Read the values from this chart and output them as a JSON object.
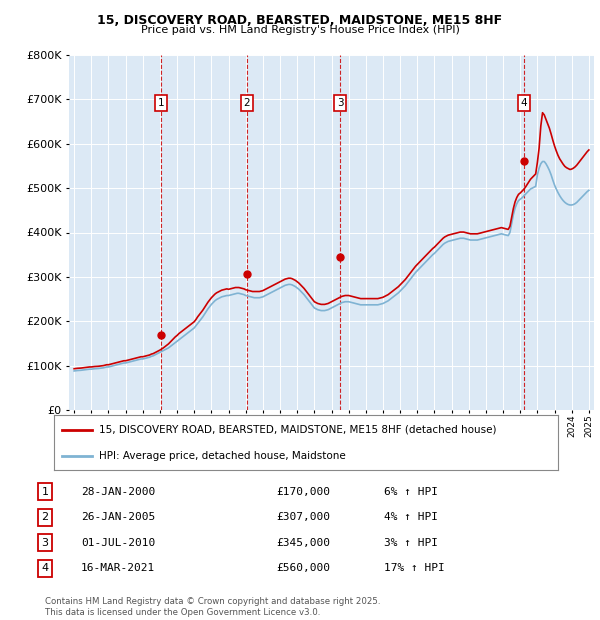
{
  "title_line1": "15, DISCOVERY ROAD, BEARSTED, MAIDSTONE, ME15 8HF",
  "title_line2": "Price paid vs. HM Land Registry's House Price Index (HPI)",
  "background_color": "#dce9f5",
  "grid_color": "#ffffff",
  "red_line_color": "#cc0000",
  "blue_line_color": "#7fb3d3",
  "ylim": [
    0,
    800000
  ],
  "yticks": [
    0,
    100000,
    200000,
    300000,
    400000,
    500000,
    600000,
    700000,
    800000
  ],
  "ytick_labels": [
    "£0",
    "£100K",
    "£200K",
    "£300K",
    "£400K",
    "£500K",
    "£600K",
    "£700K",
    "£800K"
  ],
  "xlim_start": 1994.7,
  "xlim_end": 2025.3,
  "sale_dates": [
    2000.07,
    2005.07,
    2010.5,
    2021.21
  ],
  "sale_prices": [
    170000,
    307000,
    345000,
    560000
  ],
  "sale_labels": [
    "1",
    "2",
    "3",
    "4"
  ],
  "legend_line1": "15, DISCOVERY ROAD, BEARSTED, MAIDSTONE, ME15 8HF (detached house)",
  "legend_line2": "HPI: Average price, detached house, Maidstone",
  "table_data": [
    [
      "1",
      "28-JAN-2000",
      "£170,000",
      "6% ↑ HPI"
    ],
    [
      "2",
      "26-JAN-2005",
      "£307,000",
      "4% ↑ HPI"
    ],
    [
      "3",
      "01-JUL-2010",
      "£345,000",
      "3% ↑ HPI"
    ],
    [
      "4",
      "16-MAR-2021",
      "£560,000",
      "17% ↑ HPI"
    ]
  ],
  "footer": "Contains HM Land Registry data © Crown copyright and database right 2025.\nThis data is licensed under the Open Government Licence v3.0.",
  "hpi_x": [
    1995.0,
    1995.1,
    1995.2,
    1995.3,
    1995.4,
    1995.5,
    1995.6,
    1995.7,
    1995.8,
    1995.9,
    1996.0,
    1996.1,
    1996.2,
    1996.3,
    1996.4,
    1996.5,
    1996.6,
    1996.7,
    1996.8,
    1996.9,
    1997.0,
    1997.1,
    1997.2,
    1997.3,
    1997.4,
    1997.5,
    1997.6,
    1997.7,
    1997.8,
    1997.9,
    1998.0,
    1998.1,
    1998.2,
    1998.3,
    1998.4,
    1998.5,
    1998.6,
    1998.7,
    1998.8,
    1998.9,
    1999.0,
    1999.1,
    1999.2,
    1999.3,
    1999.4,
    1999.5,
    1999.6,
    1999.7,
    1999.8,
    1999.9,
    2000.0,
    2000.1,
    2000.2,
    2000.3,
    2000.4,
    2000.5,
    2000.6,
    2000.7,
    2000.8,
    2000.9,
    2001.0,
    2001.1,
    2001.2,
    2001.3,
    2001.4,
    2001.5,
    2001.6,
    2001.7,
    2001.8,
    2001.9,
    2002.0,
    2002.1,
    2002.2,
    2002.3,
    2002.4,
    2002.5,
    2002.6,
    2002.7,
    2002.8,
    2002.9,
    2003.0,
    2003.1,
    2003.2,
    2003.3,
    2003.4,
    2003.5,
    2003.6,
    2003.7,
    2003.8,
    2003.9,
    2004.0,
    2004.1,
    2004.2,
    2004.3,
    2004.4,
    2004.5,
    2004.6,
    2004.7,
    2004.8,
    2004.9,
    2005.0,
    2005.1,
    2005.2,
    2005.3,
    2005.4,
    2005.5,
    2005.6,
    2005.7,
    2005.8,
    2005.9,
    2006.0,
    2006.1,
    2006.2,
    2006.3,
    2006.4,
    2006.5,
    2006.6,
    2006.7,
    2006.8,
    2006.9,
    2007.0,
    2007.1,
    2007.2,
    2007.3,
    2007.4,
    2007.5,
    2007.6,
    2007.7,
    2007.8,
    2007.9,
    2008.0,
    2008.1,
    2008.2,
    2008.3,
    2008.4,
    2008.5,
    2008.6,
    2008.7,
    2008.8,
    2008.9,
    2009.0,
    2009.1,
    2009.2,
    2009.3,
    2009.4,
    2009.5,
    2009.6,
    2009.7,
    2009.8,
    2009.9,
    2010.0,
    2010.1,
    2010.2,
    2010.3,
    2010.4,
    2010.5,
    2010.6,
    2010.7,
    2010.8,
    2010.9,
    2011.0,
    2011.1,
    2011.2,
    2011.3,
    2011.4,
    2011.5,
    2011.6,
    2011.7,
    2011.8,
    2011.9,
    2012.0,
    2012.1,
    2012.2,
    2012.3,
    2012.4,
    2012.5,
    2012.6,
    2012.7,
    2012.8,
    2012.9,
    2013.0,
    2013.1,
    2013.2,
    2013.3,
    2013.4,
    2013.5,
    2013.6,
    2013.7,
    2013.8,
    2013.9,
    2014.0,
    2014.1,
    2014.2,
    2014.3,
    2014.4,
    2014.5,
    2014.6,
    2014.7,
    2014.8,
    2014.9,
    2015.0,
    2015.1,
    2015.2,
    2015.3,
    2015.4,
    2015.5,
    2015.6,
    2015.7,
    2015.8,
    2015.9,
    2016.0,
    2016.1,
    2016.2,
    2016.3,
    2016.4,
    2016.5,
    2016.6,
    2016.7,
    2016.8,
    2016.9,
    2017.0,
    2017.1,
    2017.2,
    2017.3,
    2017.4,
    2017.5,
    2017.6,
    2017.7,
    2017.8,
    2017.9,
    2018.0,
    2018.1,
    2018.2,
    2018.3,
    2018.4,
    2018.5,
    2018.6,
    2018.7,
    2018.8,
    2018.9,
    2019.0,
    2019.1,
    2019.2,
    2019.3,
    2019.4,
    2019.5,
    2019.6,
    2019.7,
    2019.8,
    2019.9,
    2020.0,
    2020.1,
    2020.2,
    2020.3,
    2020.4,
    2020.5,
    2020.6,
    2020.7,
    2020.8,
    2020.9,
    2021.0,
    2021.1,
    2021.2,
    2021.3,
    2021.4,
    2021.5,
    2021.6,
    2021.7,
    2021.8,
    2021.9,
    2022.0,
    2022.1,
    2022.2,
    2022.3,
    2022.4,
    2022.5,
    2022.6,
    2022.7,
    2022.8,
    2022.9,
    2023.0,
    2023.1,
    2023.2,
    2023.3,
    2023.4,
    2023.5,
    2023.6,
    2023.7,
    2023.8,
    2023.9,
    2024.0,
    2024.1,
    2024.2,
    2024.3,
    2024.4,
    2024.5,
    2024.6,
    2024.7,
    2024.8,
    2024.9,
    2025.0
  ],
  "hpi_y": [
    88000,
    88500,
    89000,
    89200,
    89500,
    90000,
    90500,
    91000,
    91500,
    92000,
    92000,
    92500,
    93000,
    93200,
    93500,
    94000,
    94500,
    95000,
    96000,
    97000,
    97000,
    98000,
    99000,
    100000,
    101000,
    102000,
    103000,
    104000,
    105000,
    106000,
    106000,
    107000,
    108000,
    109000,
    110000,
    111000,
    112000,
    113000,
    114000,
    115000,
    115000,
    116000,
    117000,
    118000,
    119000,
    121000,
    122000,
    124000,
    126000,
    128000,
    130000,
    132000,
    134000,
    136000,
    138000,
    140000,
    143000,
    146000,
    149000,
    152000,
    155000,
    158000,
    161000,
    164000,
    167000,
    170000,
    173000,
    176000,
    179000,
    182000,
    185000,
    190000,
    195000,
    200000,
    205000,
    210000,
    216000,
    222000,
    228000,
    233000,
    238000,
    242000,
    246000,
    249000,
    251000,
    253000,
    255000,
    256000,
    257000,
    258000,
    258000,
    259000,
    260000,
    261000,
    262000,
    263000,
    263000,
    262000,
    261000,
    260000,
    258000,
    257000,
    256000,
    255000,
    254000,
    253000,
    253000,
    253000,
    253000,
    254000,
    255000,
    257000,
    259000,
    261000,
    263000,
    265000,
    267000,
    269000,
    271000,
    273000,
    275000,
    277000,
    279000,
    281000,
    282000,
    283000,
    283000,
    282000,
    280000,
    278000,
    275000,
    272000,
    268000,
    264000,
    260000,
    255000,
    250000,
    245000,
    240000,
    235000,
    230000,
    228000,
    226000,
    225000,
    224000,
    224000,
    224000,
    225000,
    226000,
    228000,
    230000,
    232000,
    234000,
    236000,
    238000,
    240000,
    242000,
    243000,
    244000,
    244000,
    244000,
    243000,
    242000,
    241000,
    240000,
    239000,
    238000,
    237000,
    237000,
    237000,
    237000,
    237000,
    237000,
    237000,
    237000,
    237000,
    237000,
    237000,
    238000,
    239000,
    240000,
    242000,
    244000,
    246000,
    249000,
    252000,
    255000,
    258000,
    261000,
    264000,
    268000,
    272000,
    276000,
    280000,
    285000,
    290000,
    295000,
    300000,
    305000,
    310000,
    314000,
    318000,
    322000,
    326000,
    330000,
    334000,
    338000,
    342000,
    346000,
    350000,
    353000,
    357000,
    361000,
    365000,
    369000,
    373000,
    376000,
    378000,
    380000,
    381000,
    382000,
    383000,
    384000,
    385000,
    386000,
    387000,
    387000,
    387000,
    386000,
    385000,
    384000,
    383000,
    383000,
    383000,
    383000,
    383000,
    384000,
    385000,
    386000,
    387000,
    388000,
    389000,
    390000,
    391000,
    392000,
    393000,
    394000,
    395000,
    396000,
    397000,
    396000,
    395000,
    394000,
    393000,
    400000,
    420000,
    440000,
    455000,
    465000,
    472000,
    475000,
    478000,
    482000,
    486000,
    490000,
    494000,
    498000,
    500000,
    502000,
    504000,
    530000,
    545000,
    555000,
    560000,
    560000,
    555000,
    548000,
    540000,
    530000,
    518000,
    507000,
    498000,
    490000,
    483000,
    477000,
    472000,
    468000,
    465000,
    463000,
    462000,
    462000,
    463000,
    465000,
    468000,
    472000,
    476000,
    480000,
    484000,
    488000,
    492000,
    495000
  ],
  "red_y": [
    93000,
    93500,
    94000,
    94200,
    94500,
    95000,
    95500,
    96000,
    96500,
    97000,
    97000,
    97500,
    98000,
    98200,
    98500,
    99000,
    99500,
    100000,
    101000,
    102000,
    102000,
    103000,
    104000,
    105000,
    106000,
    107000,
    108000,
    109000,
    110000,
    111000,
    111000,
    112000,
    113000,
    114000,
    115000,
    116000,
    117000,
    118000,
    119000,
    120000,
    120000,
    121000,
    122000,
    123000,
    124000,
    126000,
    127000,
    129000,
    131000,
    133000,
    135000,
    137500,
    140000,
    143000,
    146000,
    149000,
    153000,
    157000,
    161000,
    165000,
    168000,
    172000,
    175000,
    178000,
    181000,
    184000,
    187000,
    190000,
    193000,
    196000,
    199000,
    204000,
    210000,
    215000,
    220000,
    225000,
    231000,
    237000,
    243000,
    248000,
    253000,
    257000,
    261000,
    264000,
    266000,
    268000,
    270000,
    271000,
    272000,
    273000,
    272000,
    273000,
    274000,
    275000,
    276000,
    276000,
    276000,
    275000,
    274000,
    273000,
    271000,
    270000,
    269000,
    268000,
    267000,
    267000,
    267000,
    267000,
    267000,
    268000,
    269000,
    271000,
    273000,
    275000,
    277000,
    279000,
    281000,
    283000,
    285000,
    287000,
    289000,
    291000,
    293000,
    295000,
    296000,
    297000,
    297000,
    296000,
    294000,
    292000,
    289000,
    286000,
    282000,
    278000,
    274000,
    269000,
    264000,
    259000,
    254000,
    249000,
    244000,
    242000,
    240000,
    239000,
    238000,
    238000,
    238000,
    239000,
    240000,
    242000,
    244000,
    246000,
    248000,
    250000,
    252000,
    254000,
    256000,
    257000,
    258000,
    258000,
    258000,
    257000,
    256000,
    255000,
    254000,
    253000,
    252000,
    251000,
    251000,
    251000,
    251000,
    251000,
    251000,
    251000,
    251000,
    251000,
    251000,
    251000,
    252000,
    253000,
    254000,
    256000,
    258000,
    260000,
    263000,
    266000,
    269000,
    272000,
    275000,
    278000,
    282000,
    286000,
    290000,
    294000,
    299000,
    304000,
    309000,
    314000,
    319000,
    324000,
    328000,
    332000,
    336000,
    340000,
    344000,
    348000,
    352000,
    356000,
    360000,
    364000,
    367000,
    371000,
    375000,
    379000,
    383000,
    387000,
    390000,
    392000,
    394000,
    395000,
    396000,
    397000,
    398000,
    399000,
    400000,
    401000,
    401000,
    401000,
    400000,
    399000,
    398000,
    397000,
    397000,
    397000,
    397000,
    397000,
    398000,
    399000,
    400000,
    401000,
    402000,
    403000,
    404000,
    405000,
    406000,
    407000,
    408000,
    409000,
    410000,
    411000,
    410000,
    409000,
    408000,
    407000,
    414000,
    434000,
    454000,
    469000,
    479000,
    486000,
    489000,
    493000,
    497000,
    502000,
    508000,
    514000,
    520000,
    524000,
    528000,
    532000,
    558000,
    590000,
    640000,
    670000,
    665000,
    655000,
    645000,
    635000,
    622000,
    608000,
    595000,
    584000,
    574000,
    566000,
    560000,
    554000,
    549000,
    546000,
    544000,
    542000,
    543000,
    545000,
    548000,
    552000,
    557000,
    562000,
    567000,
    572000,
    577000,
    582000,
    586000
  ]
}
